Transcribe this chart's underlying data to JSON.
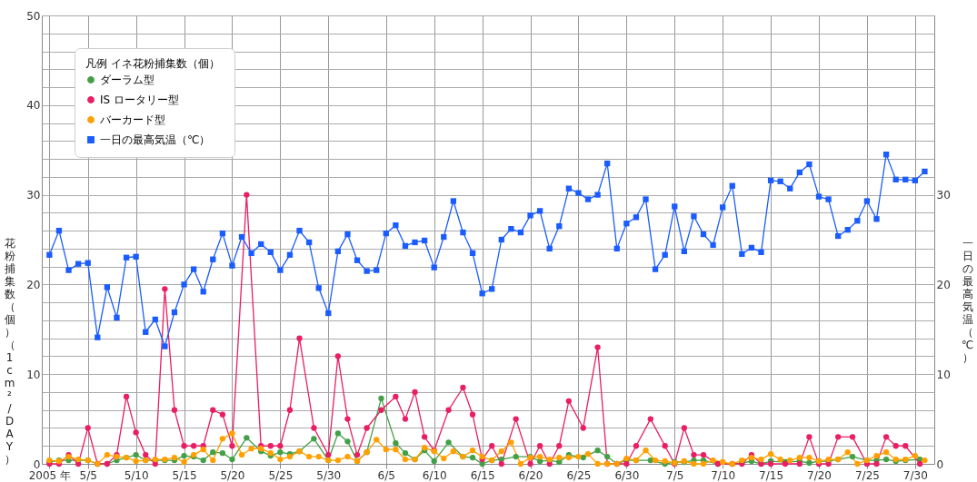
{
  "chart_data": {
    "type": "line",
    "ylabel": "花粉捕集数（個）（1cm²/DAY）",
    "y2label": "一日の最高気温（℃）",
    "legend_title": "凡例  イネ花粉捕集数（個）",
    "legend": "top left",
    "grid": true,
    "x": [
      "2005-05-01",
      "2005-05-02",
      "2005-05-03",
      "2005-05-04",
      "2005-05-05",
      "2005-05-06",
      "2005-05-07",
      "2005-05-08",
      "2005-05-09",
      "2005-05-10",
      "2005-05-11",
      "2005-05-12",
      "2005-05-13",
      "2005-05-14",
      "2005-05-15",
      "2005-05-16",
      "2005-05-17",
      "2005-05-18",
      "2005-05-19",
      "2005-05-20",
      "2005-05-21",
      "2005-05-22",
      "2005-05-23",
      "2005-05-24",
      "2005-05-25",
      "2005-05-26",
      "2005-05-27",
      "2005-05-28",
      "2005-05-29",
      "2005-05-30",
      "2005-05-31",
      "2005-06-01",
      "2005-06-02",
      "2005-06-03",
      "2005-06-04",
      "2005-06-05",
      "2005-06-06",
      "2005-06-07",
      "2005-06-08",
      "2005-06-09",
      "2005-06-10",
      "2005-06-11",
      "2005-06-12",
      "2005-06-13",
      "2005-06-14",
      "2005-06-15",
      "2005-06-16",
      "2005-06-17",
      "2005-06-18",
      "2005-06-19",
      "2005-06-20",
      "2005-06-21",
      "2005-06-22",
      "2005-06-23",
      "2005-06-24",
      "2005-06-25",
      "2005-06-26",
      "2005-06-27",
      "2005-06-28",
      "2005-06-29",
      "2005-06-30",
      "2005-07-01",
      "2005-07-02",
      "2005-07-03",
      "2005-07-04",
      "2005-07-05",
      "2005-07-06",
      "2005-07-07",
      "2005-07-08",
      "2005-07-09",
      "2005-07-10",
      "2005-07-11",
      "2005-07-12",
      "2005-07-13",
      "2005-07-14",
      "2005-07-15",
      "2005-07-16",
      "2005-07-17",
      "2005-07-18",
      "2005-07-19",
      "2005-07-20",
      "2005-07-21",
      "2005-07-22",
      "2005-07-23",
      "2005-07-24",
      "2005-07-25",
      "2005-07-26",
      "2005-07-27",
      "2005-07-28",
      "2005-07-29",
      "2005-07-30",
      "2005-07-31"
    ],
    "xlim": [
      "2005-04-30T05:00",
      "2005-08-01T00:00"
    ],
    "xticks": [
      {
        "value": "2005-05-01",
        "label": "2005 年"
      },
      {
        "value": "2005-05-05",
        "label": "5/5"
      },
      {
        "value": "2005-05-10",
        "label": "5/10"
      },
      {
        "value": "2005-05-15",
        "label": "5/15"
      },
      {
        "value": "2005-05-20",
        "label": "5/20"
      },
      {
        "value": "2005-05-25",
        "label": "5/25"
      },
      {
        "value": "2005-05-30",
        "label": "5/30"
      },
      {
        "value": "2005-06-05",
        "label": "6/5"
      },
      {
        "value": "2005-06-10",
        "label": "6/10"
      },
      {
        "value": "2005-06-15",
        "label": "6/15"
      },
      {
        "value": "2005-06-20",
        "label": "6/20"
      },
      {
        "value": "2005-06-25",
        "label": "6/25"
      },
      {
        "value": "2005-06-30",
        "label": "6/30"
      },
      {
        "value": "2005-07-05",
        "label": "7/5"
      },
      {
        "value": "2005-07-10",
        "label": "7/10"
      },
      {
        "value": "2005-07-15",
        "label": "7/15"
      },
      {
        "value": "2005-07-20",
        "label": "7/20"
      },
      {
        "value": "2005-07-25",
        "label": "7/25"
      },
      {
        "value": "2005-07-30",
        "label": "7/30"
      }
    ],
    "ylim": [
      0,
      50
    ],
    "yticks": [
      0,
      {
        "value": 2,
        "label": null
      },
      {
        "value": 4,
        "label": null
      },
      {
        "value": 6,
        "label": null
      },
      {
        "value": 8,
        "label": null
      },
      10,
      {
        "value": 12,
        "label": null
      },
      {
        "value": 14,
        "label": null
      },
      {
        "value": 16,
        "label": null
      },
      {
        "value": 18,
        "label": null
      },
      20,
      {
        "value": 22,
        "label": null
      },
      {
        "value": 24,
        "label": null
      },
      {
        "value": 26,
        "label": null
      },
      {
        "value": 28,
        "label": null
      },
      30,
      {
        "value": 32,
        "label": null
      },
      {
        "value": 34,
        "label": null
      },
      {
        "value": 36,
        "label": null
      },
      {
        "value": 38,
        "label": null
      },
      40,
      {
        "value": 42,
        "label": null
      },
      {
        "value": 44,
        "label": null
      },
      {
        "value": 46,
        "label": null
      },
      {
        "value": 48,
        "label": null
      },
      50
    ],
    "y2lim": [
      0,
      50
    ],
    "y2ticks": [
      0,
      10,
      20,
      30
    ],
    "series": [
      {
        "name": "ダーラム型",
        "color": "#43a047",
        "marker": "circle",
        "x": [
          "2005-05-01",
          "2005-05-02",
          "2005-05-03",
          "2005-05-04",
          "2005-05-05",
          "2005-05-06",
          "2005-05-07",
          "2005-05-08",
          "2005-05-09",
          "2005-05-10",
          "2005-05-11",
          "2005-05-12",
          "2005-05-13",
          "2005-05-14",
          "2005-05-15",
          "2005-05-16",
          "2005-05-17",
          "2005-05-18",
          "2005-05-19",
          "2005-05-20",
          "2005-05-21T12:00",
          "2005-05-23",
          "2005-05-24",
          "2005-05-25",
          "2005-05-26",
          "2005-05-27",
          "2005-05-28T12:00",
          "2005-05-30",
          "2005-05-31",
          "2005-06-01",
          "2005-06-02",
          "2005-06-03",
          "2005-06-04T12:00",
          "2005-06-06",
          "2005-06-07",
          "2005-06-08",
          "2005-06-09",
          "2005-06-10",
          "2005-06-11T12:00",
          "2005-06-13",
          "2005-06-14",
          "2005-06-15",
          "2005-06-16",
          "2005-06-17",
          "2005-06-18T12:00",
          "2005-06-20",
          "2005-06-21",
          "2005-06-22",
          "2005-06-23",
          "2005-06-24",
          "2005-06-25T12:00",
          "2005-06-27",
          "2005-06-28",
          "2005-06-29",
          "2005-06-30",
          "2005-07-01",
          "2005-07-02T12:00",
          "2005-07-04",
          "2005-07-05",
          "2005-07-06",
          "2005-07-07",
          "2005-07-08",
          "2005-07-09T12:00",
          "2005-07-11",
          "2005-07-12",
          "2005-07-13",
          "2005-07-14",
          "2005-07-15",
          "2005-07-16T12:00",
          "2005-07-18",
          "2005-07-19",
          "2005-07-20",
          "2005-07-21",
          "2005-07-22",
          "2005-07-23T12:00",
          "2005-07-25",
          "2005-07-26",
          "2005-07-27",
          "2005-07-28",
          "2005-07-29",
          "2005-07-30T12:00"
        ],
        "values": [
          0.2,
          0.4,
          0.4,
          0.4,
          0.4,
          0,
          0,
          0.4,
          0.7,
          1.0,
          0.4,
          0.4,
          0.4,
          0.4,
          0.9,
          0.8,
          0.4,
          1.3,
          1.2,
          0.5,
          2.9,
          1.4,
          0.9,
          1.3,
          1.1,
          1.4,
          2.8,
          0.4,
          3.4,
          2.5,
          0.3,
          1.3,
          7.3,
          2.3,
          1.2,
          0.5,
          1.5,
          0.3,
          2.4,
          0.8,
          0.7,
          0,
          0.4,
          0.5,
          0.8,
          0.8,
          0.3,
          0.4,
          0.2,
          1.0,
          0.7,
          1.5,
          0.8,
          0,
          0.4,
          0.4,
          0.4,
          0,
          0.2,
          0.2,
          0.4,
          0.4,
          0,
          0,
          0.1,
          0.3,
          0,
          0.3,
          0.2,
          0.3,
          0.1,
          0.3,
          0.3,
          0.5,
          0.8,
          0.4,
          0.4,
          0.5,
          0.3,
          0.4,
          0.5
        ]
      },
      {
        "name": "IS ロータリー型",
        "color": "#e91e63",
        "marker": "circle",
        "x": [
          "2005-05-01",
          "2005-05-02",
          "2005-05-03",
          "2005-05-04",
          "2005-05-05",
          "2005-05-06",
          "2005-05-07",
          "2005-05-08",
          "2005-05-09",
          "2005-05-10",
          "2005-05-11",
          "2005-05-12",
          "2005-05-13",
          "2005-05-14",
          "2005-05-15",
          "2005-05-16",
          "2005-05-17",
          "2005-05-18",
          "2005-05-19",
          "2005-05-20",
          "2005-05-21T12:00",
          "2005-05-23",
          "2005-05-24",
          "2005-05-25",
          "2005-05-26",
          "2005-05-27",
          "2005-05-28T12:00",
          "2005-05-30",
          "2005-05-31",
          "2005-06-01",
          "2005-06-02",
          "2005-06-03",
          "2005-06-04T12:00",
          "2005-06-06",
          "2005-06-07",
          "2005-06-08",
          "2005-06-09",
          "2005-06-10",
          "2005-06-11T12:00",
          "2005-06-13",
          "2005-06-14",
          "2005-06-15",
          "2005-06-16",
          "2005-06-17",
          "2005-06-18T12:00",
          "2005-06-20",
          "2005-06-21",
          "2005-06-22",
          "2005-06-23",
          "2005-06-24",
          "2005-06-25T12:00",
          "2005-06-27",
          "2005-06-28",
          "2005-06-29",
          "2005-06-30",
          "2005-07-01",
          "2005-07-02T12:00",
          "2005-07-04",
          "2005-07-05",
          "2005-07-06",
          "2005-07-07",
          "2005-07-08",
          "2005-07-09T12:00",
          "2005-07-11",
          "2005-07-12",
          "2005-07-13",
          "2005-07-14",
          "2005-07-15",
          "2005-07-16T12:00",
          "2005-07-18",
          "2005-07-19",
          "2005-07-20",
          "2005-07-21",
          "2005-07-22",
          "2005-07-23T12:00",
          "2005-07-25",
          "2005-07-26",
          "2005-07-27",
          "2005-07-28",
          "2005-07-29",
          "2005-07-30T12:00"
        ],
        "values": [
          0,
          0,
          1,
          0,
          4,
          0,
          0,
          1,
          7.5,
          3.5,
          1,
          0,
          19.5,
          6,
          2,
          2,
          2,
          6,
          5.5,
          2,
          30,
          2,
          2,
          2,
          6,
          14,
          4,
          1,
          12,
          5,
          1,
          4,
          6,
          7.5,
          5,
          8,
          3,
          1.5,
          6,
          8.5,
          5.5,
          0.5,
          2,
          0,
          5,
          0,
          2,
          0,
          2,
          7,
          4,
          13,
          0,
          0,
          0,
          2,
          5,
          2,
          0,
          4,
          1,
          1,
          0,
          0,
          0,
          1,
          0,
          0,
          0,
          0,
          3,
          0,
          0,
          3,
          3,
          0,
          0,
          3,
          2,
          2,
          0
        ]
      },
      {
        "name": "バーカード型",
        "color": "#ffa000",
        "marker": "circle",
        "values": [
          0.4,
          0.3,
          0.8,
          0.5,
          0.4,
          0,
          1.0,
          0.8,
          0.7,
          0.3,
          0.4,
          0.5,
          0.5,
          0.7,
          0.2,
          1.0,
          1.6,
          0.4,
          2.8,
          3.4,
          1.0,
          1.7,
          1.7,
          1.2,
          0.5,
          0.8,
          1.4,
          0.8,
          0.8,
          0.4,
          0.4,
          0.8,
          0.3,
          1.3,
          2.7,
          1.6,
          1.6,
          0.5,
          0.5,
          1.8,
          1.4,
          0.6,
          1.4,
          0.8,
          1.5,
          0.8,
          0.4,
          1.4,
          2.4,
          0,
          0.7,
          0.8,
          0.5,
          0.7,
          0.7,
          0.8,
          1.1,
          0,
          0,
          0,
          0.6,
          0.4,
          1.5,
          0.4,
          0.3,
          0.1,
          0.3,
          0,
          0,
          0.4,
          0.2,
          0,
          0.4,
          0.7,
          0.5,
          1.1,
          0.5,
          0.4,
          0.7,
          0.7,
          0.3,
          0.5,
          0.5,
          1.3,
          0,
          0.4,
          0.9,
          1.3,
          0.5,
          0.5,
          0.9,
          0.4
        ]
      },
      {
        "name": "一日の最高気温（℃）",
        "color": "#1a5cff",
        "marker": "square",
        "axis": "y2",
        "values": [
          23.3,
          26.0,
          21.6,
          22.3,
          22.4,
          14.1,
          19.7,
          16.3,
          23.0,
          23.1,
          14.7,
          16.1,
          13.1,
          16.9,
          20.0,
          21.7,
          19.2,
          22.8,
          25.7,
          22.1,
          25.3,
          23.5,
          24.5,
          23.6,
          21.6,
          23.3,
          26.0,
          24.7,
          19.6,
          16.8,
          23.7,
          25.6,
          22.7,
          21.5,
          21.6,
          25.7,
          26.6,
          24.3,
          24.7,
          24.9,
          21.9,
          25.3,
          29.3,
          25.8,
          23.5,
          19.0,
          19.5,
          25.0,
          26.2,
          25.8,
          27.7,
          28.2,
          24.0,
          26.5,
          30.7,
          30.2,
          29.5,
          30.0,
          33.5,
          24.0,
          26.8,
          27.5,
          29.5,
          21.7,
          23.3,
          28.7,
          23.7,
          27.6,
          25.6,
          24.4,
          28.6,
          31.0,
          23.4,
          24.1,
          23.6,
          31.6,
          31.5,
          30.7,
          32.5,
          33.4,
          29.8,
          29.5,
          25.4,
          26.1,
          27.1,
          29.3,
          27.3,
          34.5,
          31.7,
          31.7,
          31.6,
          32.6
        ]
      }
    ]
  }
}
